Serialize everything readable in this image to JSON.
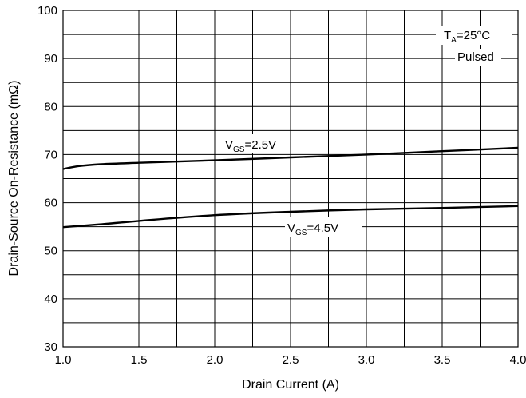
{
  "chart_data": {
    "type": "line",
    "xlabel": "Drain Current (A)",
    "ylabel": "Drain-Source On-Resistance (mΩ)",
    "xlim": [
      1.0,
      4.0
    ],
    "ylim": [
      30,
      100
    ],
    "x_ticks": [
      "1.0",
      "1.5",
      "2.0",
      "2.5",
      "3.0",
      "3.5",
      "4.0"
    ],
    "y_ticks": [
      "30",
      "40",
      "50",
      "60",
      "70",
      "80",
      "90",
      "100"
    ],
    "grid": true,
    "annotations": {
      "ta": {
        "main": "T",
        "sub": "A",
        "tail": "=25°C"
      },
      "pulsed": "Pulsed"
    },
    "series": [
      {
        "name": "VGS=2.5V",
        "label": {
          "main": "V",
          "sub": "GS",
          "tail": "=2.5V"
        },
        "x": [
          1.0,
          1.1,
          1.25,
          1.5,
          2.0,
          2.5,
          3.0,
          3.5,
          4.0
        ],
        "y": [
          67.0,
          67.6,
          68.0,
          68.3,
          68.8,
          69.4,
          70.0,
          70.7,
          71.4
        ]
      },
      {
        "name": "VGS=4.5V",
        "label": {
          "main": "V",
          "sub": "GS",
          "tail": "=4.5V"
        },
        "x": [
          1.0,
          1.25,
          1.5,
          2.0,
          2.5,
          3.0,
          3.5,
          4.0
        ],
        "y": [
          54.9,
          55.5,
          56.2,
          57.4,
          58.1,
          58.6,
          58.9,
          59.3
        ]
      }
    ]
  }
}
